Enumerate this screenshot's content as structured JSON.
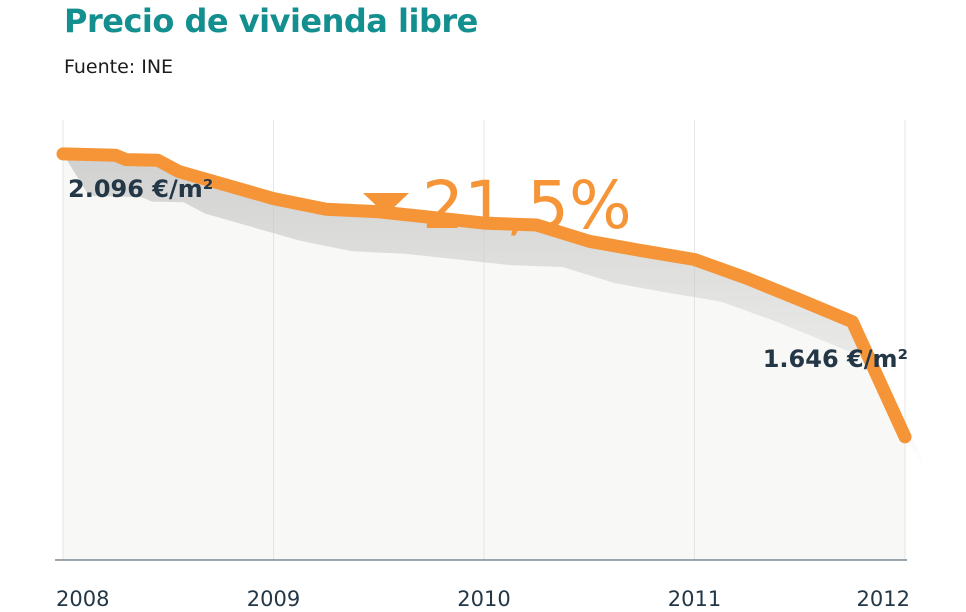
{
  "title": "Precio de vivienda libre",
  "source": "Fuente: INE",
  "chart_data": {
    "type": "line",
    "title": "Precio de vivienda libre",
    "xlabel": "",
    "ylabel": "",
    "x": [
      2008.0,
      2008.25,
      2008.3,
      2008.45,
      2008.55,
      2009.0,
      2009.25,
      2009.5,
      2009.75,
      2010.0,
      2010.25,
      2010.5,
      2010.75,
      2011.0,
      2011.25,
      2011.5,
      2011.75,
      2012.0
    ],
    "values": [
      2096,
      2094,
      2087,
      2086,
      2068,
      2025,
      2008,
      2004,
      1995,
      1986,
      1983,
      1957,
      1942,
      1928,
      1898,
      1864,
      1829,
      1646
    ],
    "xticks": [
      "2008",
      "2009",
      "2010",
      "2011",
      "2012"
    ],
    "ylim": [
      1450,
      2150
    ],
    "grid": "vertical",
    "start_label": "2.096 €/m²",
    "end_label": "1.646 €/m²",
    "change_label": "21,5%",
    "line_color": "#f59538"
  }
}
